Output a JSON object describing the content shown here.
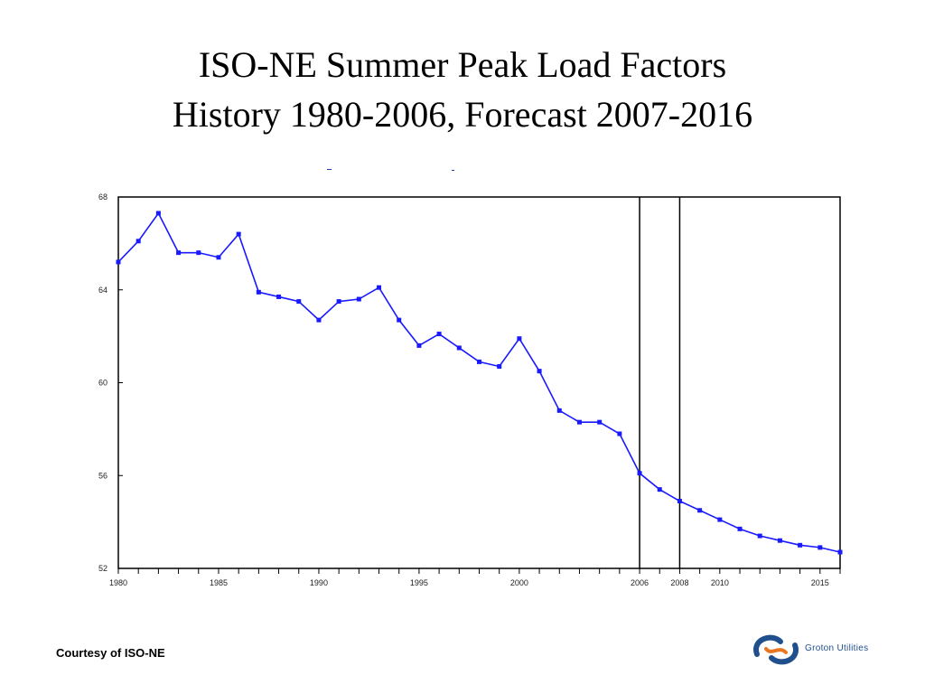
{
  "title_line1": "ISO-NE Summer Peak Load Factors",
  "title_line2": "History 1980-2006, Forecast 2007-2016",
  "credit": "Courtesy of ISO-NE",
  "logo_text": "Groton Utilities",
  "colors": {
    "line": "#1a1aff",
    "axis": "#000000",
    "logo_blue": "#1f4f8c",
    "logo_orange": "#e87722"
  },
  "chart_data": {
    "type": "line",
    "title": "",
    "xlabel": "",
    "ylabel": "",
    "xlim": [
      1980,
      2016
    ],
    "ylim": [
      52,
      68
    ],
    "y_ticks": [
      52,
      56,
      60,
      64,
      68
    ],
    "x_ticks": [
      1980,
      1985,
      1990,
      1995,
      2000,
      2006,
      2008,
      2010,
      2015
    ],
    "vlines": [
      2006,
      2008
    ],
    "grid": false,
    "series": [
      {
        "x": [
          1980,
          1981,
          1982,
          1983,
          1984,
          1985,
          1986,
          1987,
          1988,
          1989,
          1990,
          1991,
          1992,
          1993,
          1994,
          1995,
          1996,
          1997,
          1998,
          1999,
          2000,
          2001,
          2002,
          2003,
          2004,
          2005,
          2006,
          2007,
          2008,
          2009,
          2010,
          2011,
          2012,
          2013,
          2014,
          2015,
          2016
        ],
        "y": [
          65.2,
          66.1,
          67.3,
          65.6,
          65.6,
          65.4,
          66.4,
          63.9,
          63.7,
          63.5,
          62.7,
          63.5,
          63.6,
          64.1,
          62.7,
          61.6,
          62.1,
          61.5,
          60.9,
          60.7,
          61.9,
          60.5,
          58.8,
          58.3,
          58.3,
          57.8,
          56.1,
          55.4,
          54.9,
          54.5,
          54.1,
          53.7,
          53.4,
          53.2,
          53.0,
          52.9,
          52.7
        ]
      }
    ]
  }
}
